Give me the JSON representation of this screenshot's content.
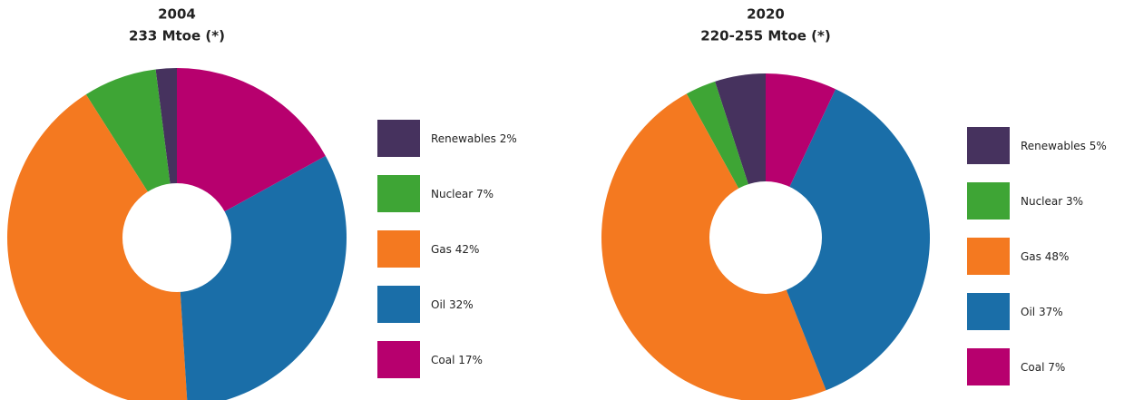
{
  "chart_data": [
    {
      "type": "donut",
      "title": "2004",
      "subtitle": "233 Mtoe (*)",
      "categories": [
        "Renewables",
        "Nuclear",
        "Gas",
        "Oil",
        "Coal"
      ],
      "values": [
        2,
        7,
        42,
        32,
        17
      ],
      "value_labels": [
        "2%",
        "7%",
        "42%",
        "32%",
        "17%"
      ],
      "colors": [
        "#46325e",
        "#3ea535",
        "#f47920",
        "#1a6ea8",
        "#b7006e"
      ]
    },
    {
      "type": "donut",
      "title": "2020",
      "subtitle": "220-255 Mtoe (*)",
      "categories": [
        "Renewables",
        "Nuclear",
        "Gas",
        "Oil",
        "Coal"
      ],
      "values": [
        5,
        3,
        48,
        37,
        7
      ],
      "value_labels": [
        "5%",
        "3%",
        "48%",
        "37%",
        "7%"
      ],
      "colors": [
        "#46325e",
        "#3ea535",
        "#f47920",
        "#1a6ea8",
        "#b7006e"
      ]
    }
  ]
}
